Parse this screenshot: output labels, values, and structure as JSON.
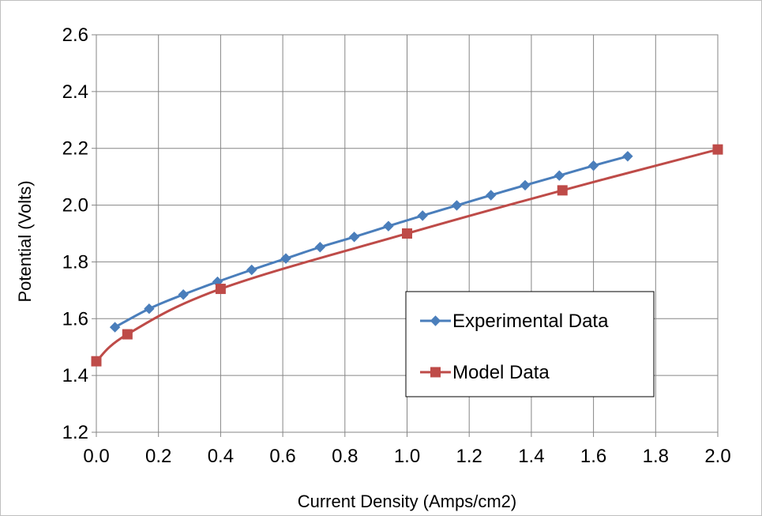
{
  "chart_data": {
    "type": "line",
    "title": "",
    "xlabel": "Current Density (Amps/cm2)",
    "ylabel": "Potential (Volts)",
    "xlim": [
      0.0,
      2.0
    ],
    "ylim": [
      1.2,
      2.6
    ],
    "x_ticks": [
      "0.0",
      "0.2",
      "0.4",
      "0.6",
      "0.8",
      "1.0",
      "1.2",
      "1.4",
      "1.6",
      "1.8",
      "2.0"
    ],
    "y_ticks": [
      "1.2",
      "1.4",
      "1.6",
      "1.8",
      "2.0",
      "2.2",
      "2.4",
      "2.6"
    ],
    "grid": true,
    "legend_position": "lower-right",
    "series": [
      {
        "name": "Experimental Data",
        "color": "#4a7ebb",
        "marker": "diamond",
        "x": [
          0.06,
          0.17,
          0.28,
          0.39,
          0.5,
          0.61,
          0.72,
          0.83,
          0.94,
          1.05,
          1.16,
          1.27,
          1.38,
          1.49,
          1.6,
          1.71
        ],
        "y": [
          1.57,
          1.635,
          1.685,
          1.73,
          1.772,
          1.812,
          1.852,
          1.888,
          1.926,
          1.963,
          1.999,
          2.035,
          2.07,
          2.104,
          2.139,
          2.172
        ]
      },
      {
        "name": "Model Data",
        "color": "#be4b48",
        "marker": "square",
        "x": [
          0.0,
          0.1,
          0.4,
          1.0,
          1.5,
          2.0
        ],
        "y": [
          1.45,
          1.545,
          1.705,
          1.9,
          2.052,
          2.196
        ]
      }
    ]
  }
}
